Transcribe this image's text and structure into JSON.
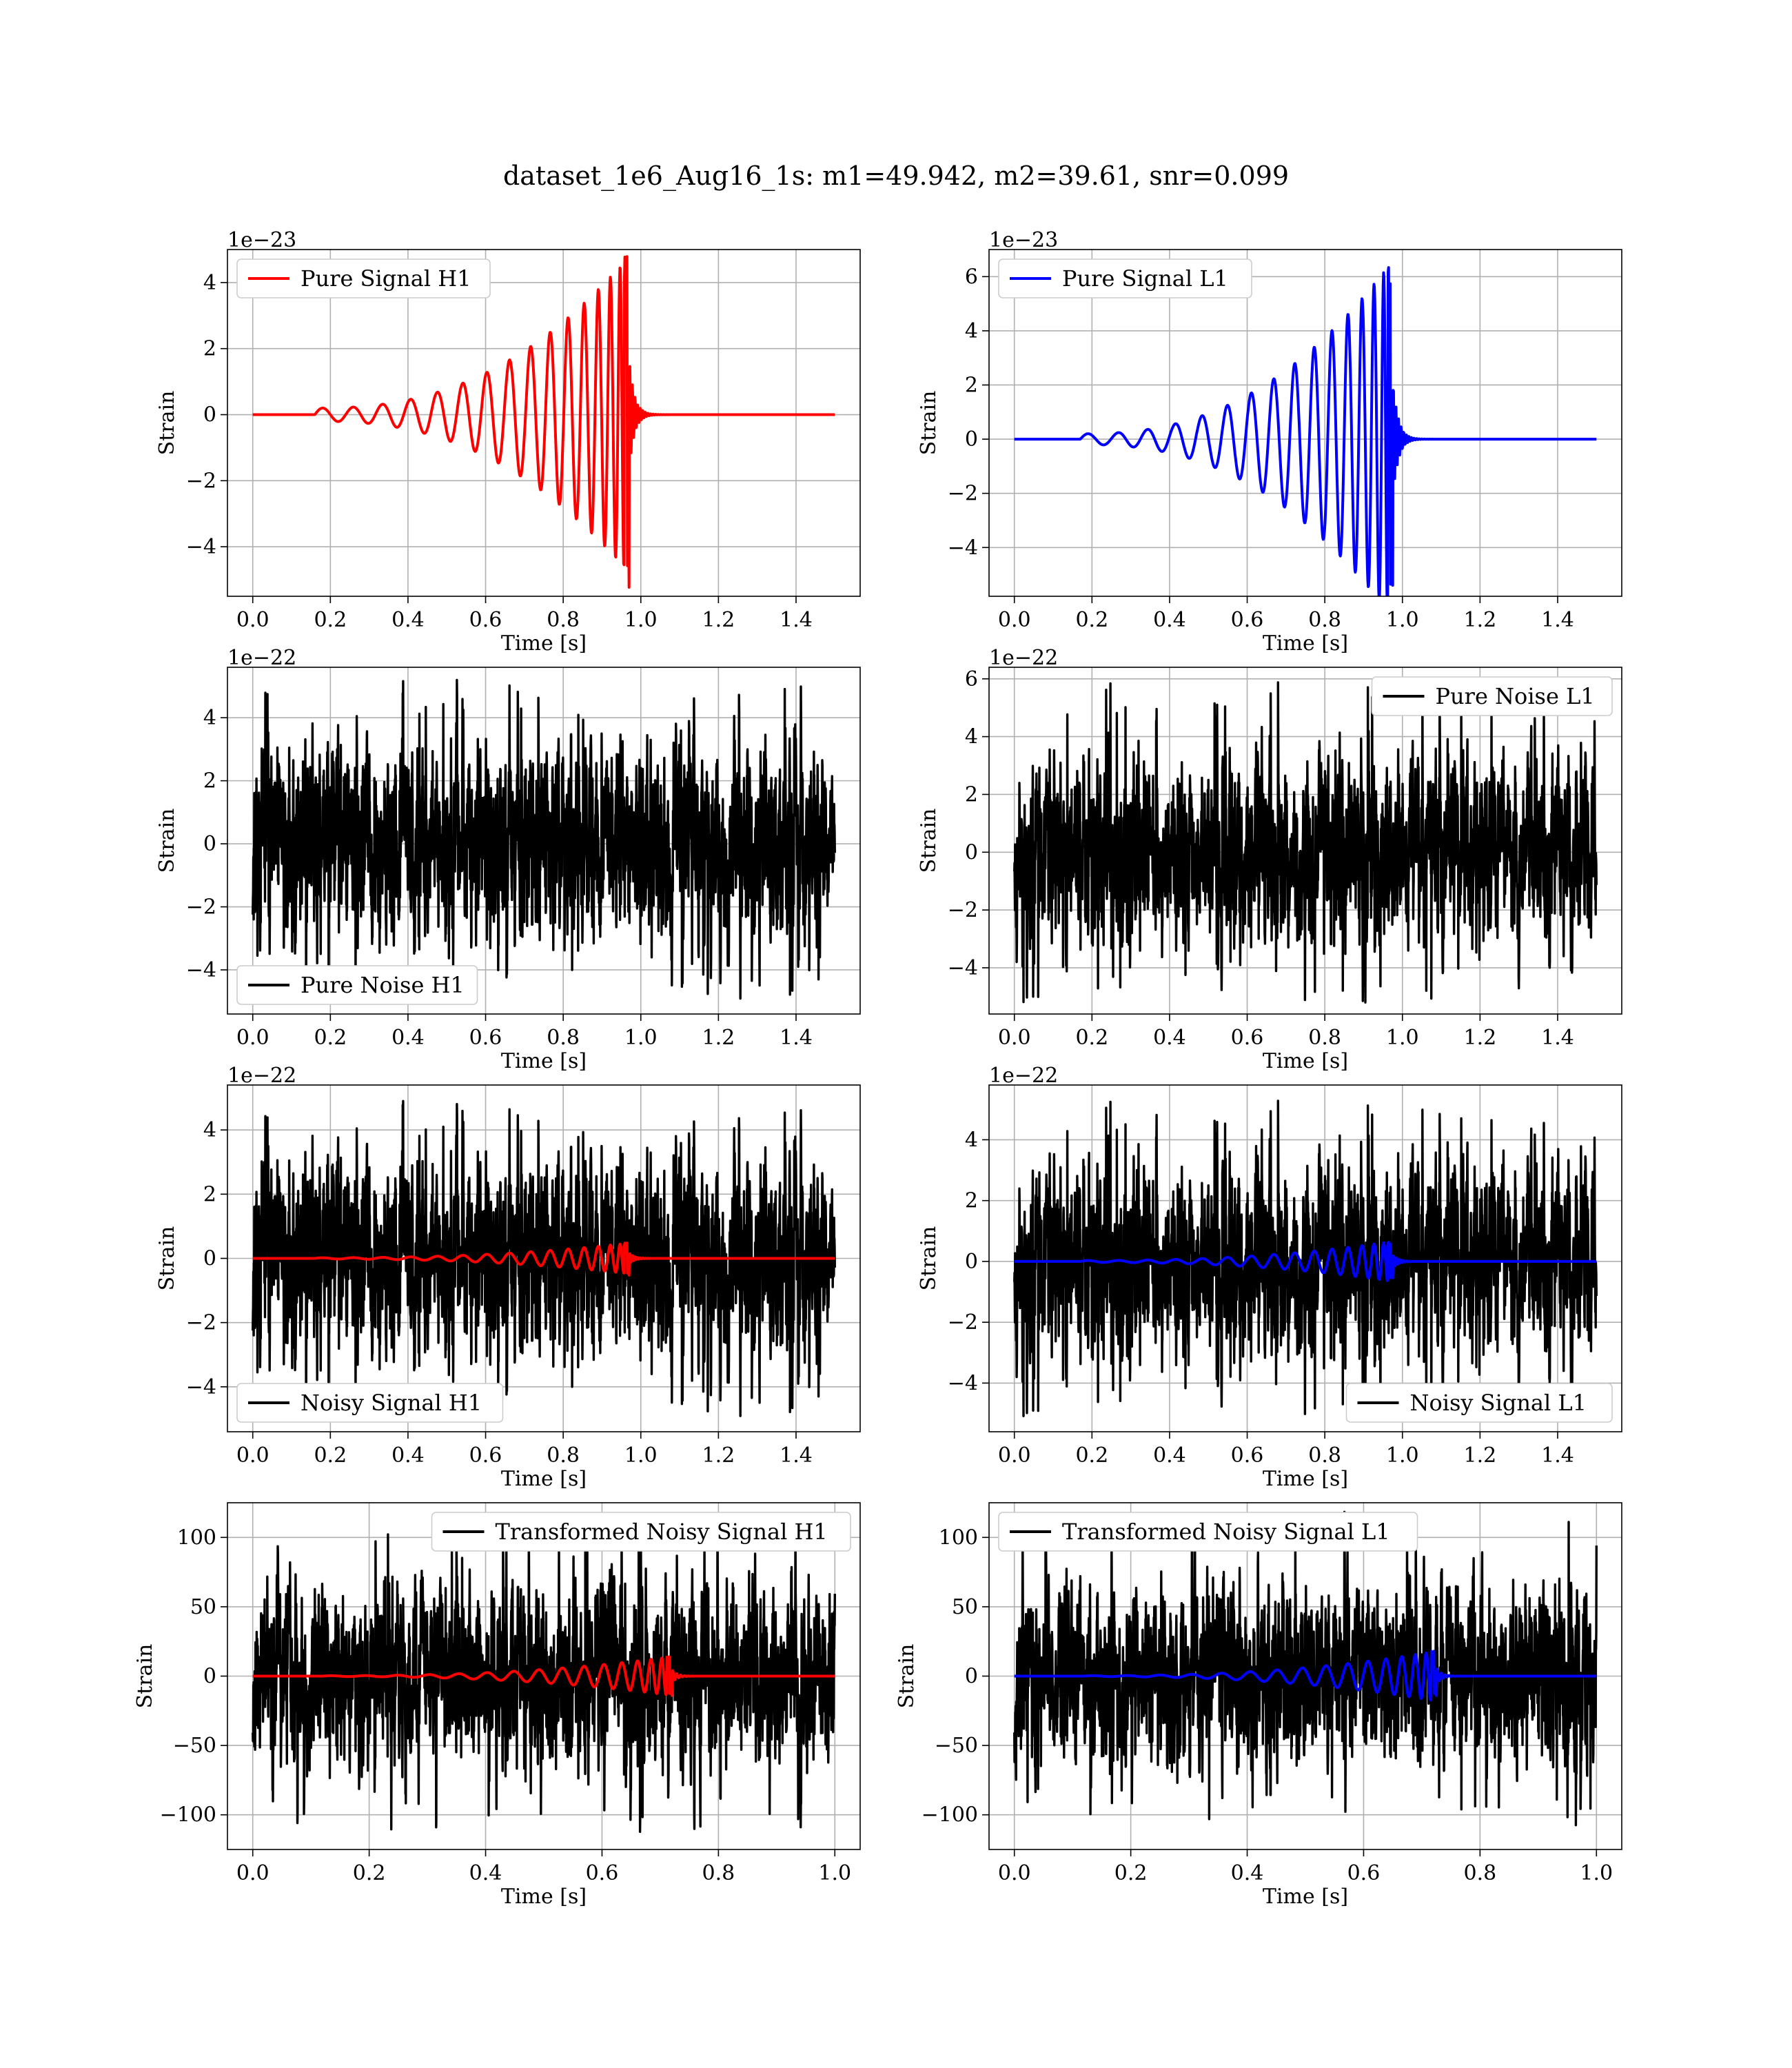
{
  "title": "dataset_1e6_Aug16_1s: m1=49.942, m2=39.61, snr=0.099",
  "colors": {
    "red": "#ff0000",
    "blue": "#0000ff",
    "black": "#000000",
    "grid": "#b0b0b0"
  },
  "chart_data": [
    {
      "type": "line",
      "panel": "pure-signal-h1",
      "xlabel": "Time [s]",
      "ylabel": "Strain",
      "offset_text": "1e−23",
      "xlim": [
        0.0,
        1.5
      ],
      "ylim": [
        -5.5,
        5.0
      ],
      "xticks": [
        0.0,
        0.2,
        0.4,
        0.6,
        0.8,
        1.0,
        1.2,
        1.4
      ],
      "xtick_labels": [
        "0.0",
        "0.2",
        "0.4",
        "0.6",
        "0.8",
        "1.0",
        "1.2",
        "1.4"
      ],
      "yticks": [
        -4,
        -2,
        0,
        2,
        4
      ],
      "ytick_labels": [
        "−4",
        "−2",
        "0",
        "2",
        "4"
      ],
      "legend_position": "upper left",
      "grid": true,
      "series": [
        {
          "name": "Pure Signal H1",
          "color": "#ff0000",
          "kind": "chirp",
          "duration": 1.5,
          "merger": 0.97,
          "start": 0.16,
          "amp_start": 0.2,
          "amp_peak": 4.8,
          "amp_min": -5.4,
          "ring_decay": 0.08
        }
      ]
    },
    {
      "type": "line",
      "panel": "pure-signal-l1",
      "xlabel": "Time [s]",
      "ylabel": "Strain",
      "offset_text": "1e−23",
      "xlim": [
        0.0,
        1.5
      ],
      "ylim": [
        -5.8,
        7.0
      ],
      "xticks": [
        0.0,
        0.2,
        0.4,
        0.6,
        0.8,
        1.0,
        1.2,
        1.4
      ],
      "xtick_labels": [
        "0.0",
        "0.2",
        "0.4",
        "0.6",
        "0.8",
        "1.0",
        "1.2",
        "1.4"
      ],
      "yticks": [
        -4,
        -2,
        0,
        2,
        4,
        6
      ],
      "ytick_labels": [
        "−4",
        "−2",
        "0",
        "2",
        "4",
        "6"
      ],
      "legend_position": "upper left",
      "grid": true,
      "series": [
        {
          "name": "Pure Signal L1",
          "color": "#0000ff",
          "kind": "chirp",
          "duration": 1.5,
          "merger": 0.975,
          "start": 0.17,
          "amp_start": 0.2,
          "amp_peak": 6.6,
          "amp_min": -5.4,
          "ring_decay": 0.08
        }
      ]
    },
    {
      "type": "line",
      "panel": "pure-noise-h1",
      "xlabel": "Time [s]",
      "ylabel": "Strain",
      "offset_text": "1e−22",
      "xlim": [
        0.0,
        1.5
      ],
      "ylim": [
        -5.4,
        5.6
      ],
      "xticks": [
        0.0,
        0.2,
        0.4,
        0.6,
        0.8,
        1.0,
        1.2,
        1.4
      ],
      "xtick_labels": [
        "0.0",
        "0.2",
        "0.4",
        "0.6",
        "0.8",
        "1.0",
        "1.2",
        "1.4"
      ],
      "yticks": [
        -4,
        -2,
        0,
        2,
        4
      ],
      "ytick_labels": [
        "−4",
        "−2",
        "0",
        "2",
        "4"
      ],
      "legend_position": "lower left",
      "grid": true,
      "series": [
        {
          "name": "Pure Noise H1",
          "color": "#000000",
          "kind": "noise",
          "duration": 1.5,
          "sigma": 1.25,
          "max": 5.3,
          "min": -5.1,
          "seed": 11
        }
      ]
    },
    {
      "type": "line",
      "panel": "pure-noise-l1",
      "xlabel": "Time [s]",
      "ylabel": "Strain",
      "offset_text": "1e−22",
      "xlim": [
        0.0,
        1.5
      ],
      "ylim": [
        -5.6,
        6.4
      ],
      "xticks": [
        0.0,
        0.2,
        0.4,
        0.6,
        0.8,
        1.0,
        1.2,
        1.4
      ],
      "xtick_labels": [
        "0.0",
        "0.2",
        "0.4",
        "0.6",
        "0.8",
        "1.0",
        "1.2",
        "1.4"
      ],
      "yticks": [
        -4,
        -2,
        0,
        2,
        4,
        6
      ],
      "ytick_labels": [
        "−4",
        "−2",
        "0",
        "2",
        "4",
        "6"
      ],
      "legend_position": "upper right",
      "grid": true,
      "series": [
        {
          "name": "Pure Noise L1",
          "color": "#000000",
          "kind": "noise",
          "duration": 1.5,
          "sigma": 1.3,
          "max": 5.9,
          "min": -5.2,
          "seed": 23
        }
      ]
    },
    {
      "type": "line",
      "panel": "noisy-signal-h1",
      "xlabel": "Time [s]",
      "ylabel": "Strain",
      "offset_text": "1e−22",
      "xlim": [
        0.0,
        1.5
      ],
      "ylim": [
        -5.4,
        5.4
      ],
      "xticks": [
        0.0,
        0.2,
        0.4,
        0.6,
        0.8,
        1.0,
        1.2,
        1.4
      ],
      "xtick_labels": [
        "0.0",
        "0.2",
        "0.4",
        "0.6",
        "0.8",
        "1.0",
        "1.2",
        "1.4"
      ],
      "yticks": [
        -4,
        -2,
        0,
        2,
        4
      ],
      "ytick_labels": [
        "−4",
        "−2",
        "0",
        "2",
        "4"
      ],
      "legend_position": "lower left",
      "grid": true,
      "series": [
        {
          "name": "Noisy Signal H1",
          "color": "#000000",
          "kind": "noise",
          "duration": 1.5,
          "sigma": 1.25,
          "max": 4.9,
          "min": -5.1,
          "seed": 11
        },
        {
          "name": "",
          "color": "#ff0000",
          "kind": "chirp",
          "duration": 1.5,
          "merger": 0.97,
          "start": 0.16,
          "amp_start": 0.02,
          "amp_peak": 0.48,
          "amp_min": -0.54,
          "ring_decay": 0.08
        }
      ]
    },
    {
      "type": "line",
      "panel": "noisy-signal-l1",
      "xlabel": "Time [s]",
      "ylabel": "Strain",
      "offset_text": "1e−22",
      "xlim": [
        0.0,
        1.5
      ],
      "ylim": [
        -5.6,
        5.8
      ],
      "xticks": [
        0.0,
        0.2,
        0.4,
        0.6,
        0.8,
        1.0,
        1.2,
        1.4
      ],
      "xtick_labels": [
        "0.0",
        "0.2",
        "0.4",
        "0.6",
        "0.8",
        "1.0",
        "1.2",
        "1.4"
      ],
      "yticks": [
        -4,
        -2,
        0,
        2,
        4
      ],
      "ytick_labels": [
        "−4",
        "−2",
        "0",
        "2",
        "4"
      ],
      "legend_position": "lower right",
      "grid": true,
      "series": [
        {
          "name": "Noisy Signal L1",
          "color": "#000000",
          "kind": "noise",
          "duration": 1.5,
          "sigma": 1.3,
          "max": 5.3,
          "min": -5.1,
          "seed": 23
        },
        {
          "name": "",
          "color": "#0000ff",
          "kind": "chirp",
          "duration": 1.5,
          "merger": 0.975,
          "start": 0.17,
          "amp_start": 0.03,
          "amp_peak": 0.66,
          "amp_min": -0.54,
          "ring_decay": 0.08
        }
      ]
    },
    {
      "type": "line",
      "panel": "transformed-noisy-signal-h1",
      "xlabel": "Time [s]",
      "ylabel": "Strain",
      "offset_text": "",
      "xlim": [
        0.0,
        1.0
      ],
      "ylim": [
        -125,
        125
      ],
      "xticks": [
        0.0,
        0.2,
        0.4,
        0.6,
        0.8,
        1.0
      ],
      "xtick_labels": [
        "0.0",
        "0.2",
        "0.4",
        "0.6",
        "0.8",
        "1.0"
      ],
      "yticks": [
        -100,
        -50,
        0,
        50,
        100
      ],
      "ytick_labels": [
        "−100",
        "−50",
        "0",
        "50",
        "100"
      ],
      "legend_position": "upper right",
      "grid": true,
      "series": [
        {
          "name": "Transformed Noisy Signal H1",
          "color": "#000000",
          "kind": "noise",
          "duration": 1.0,
          "sigma": 26,
          "max": 113,
          "min": -113,
          "seed": 37
        },
        {
          "name": "",
          "color": "#ff0000",
          "kind": "chirp",
          "duration": 1.0,
          "merger": 0.72,
          "start": 0.12,
          "amp_start": 0.3,
          "amp_peak": 14,
          "amp_min": -14,
          "ring_decay": 0.05
        }
      ]
    },
    {
      "type": "line",
      "panel": "transformed-noisy-signal-l1",
      "xlabel": "Time [s]",
      "ylabel": "Strain",
      "offset_text": "",
      "xlim": [
        0.0,
        1.0
      ],
      "ylim": [
        -125,
        125
      ],
      "xticks": [
        0.0,
        0.2,
        0.4,
        0.6,
        0.8,
        1.0
      ],
      "xtick_labels": [
        "0.0",
        "0.2",
        "0.4",
        "0.6",
        "0.8",
        "1.0"
      ],
      "yticks": [
        -100,
        -50,
        0,
        50,
        100
      ],
      "ytick_labels": [
        "−100",
        "−50",
        "0",
        "50",
        "100"
      ],
      "legend_position": "upper left",
      "grid": true,
      "series": [
        {
          "name": "Transformed Noisy Signal L1",
          "color": "#000000",
          "kind": "noise",
          "duration": 1.0,
          "sigma": 26,
          "max": 119,
          "min": -109,
          "seed": 53
        },
        {
          "name": "",
          "color": "#0000ff",
          "kind": "chirp",
          "duration": 1.0,
          "merger": 0.725,
          "start": 0.12,
          "amp_start": 0.3,
          "amp_peak": 18,
          "amp_min": -14,
          "ring_decay": 0.05
        }
      ]
    }
  ]
}
